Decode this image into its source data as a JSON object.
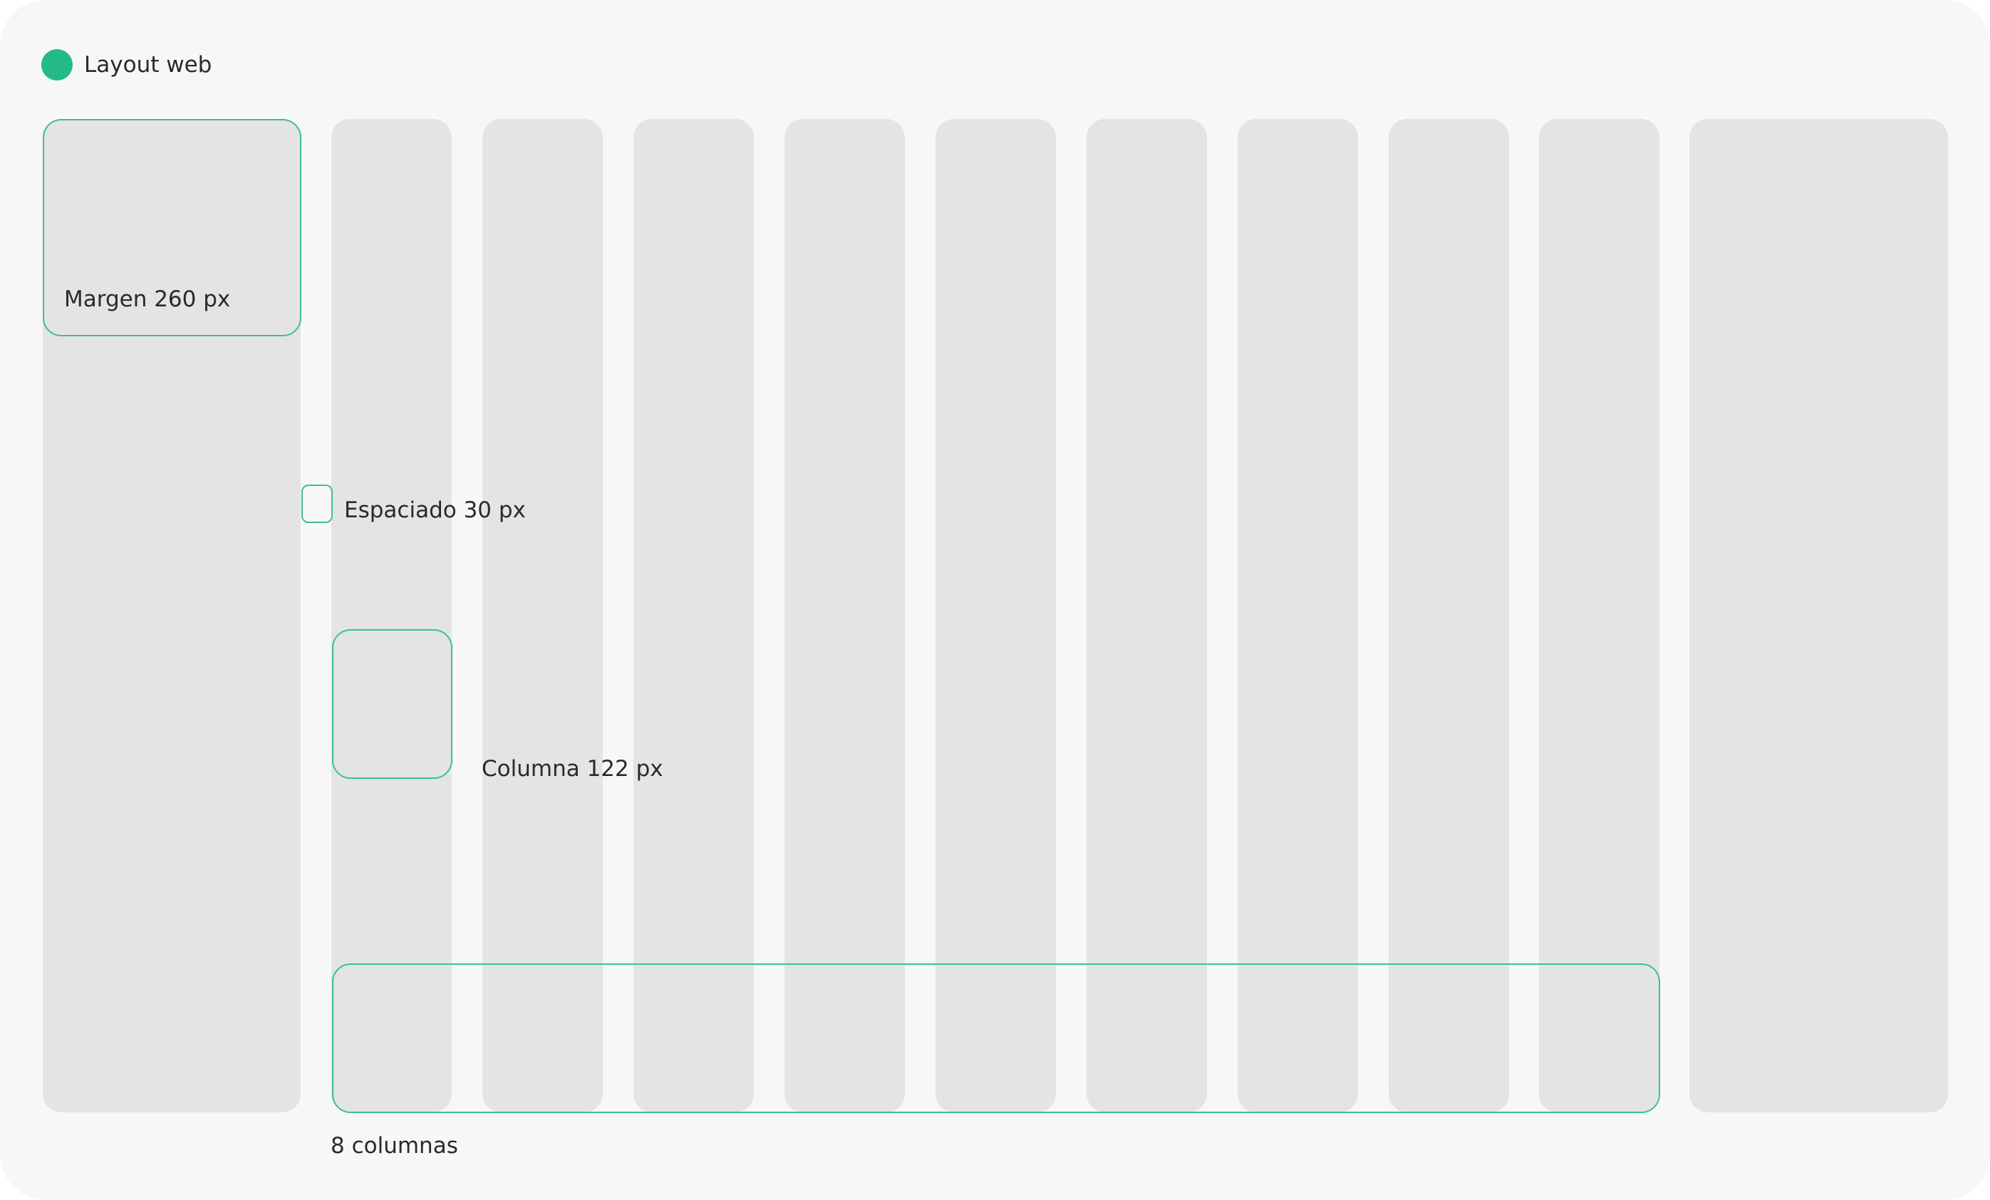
{
  "title": "Layout web",
  "accent_color": "#22bb88",
  "labels": {
    "margin": "Margen 260 px",
    "gutter": "Espaciado 30 px",
    "column": "Columna 122 px",
    "columns": "8 columnas"
  }
}
